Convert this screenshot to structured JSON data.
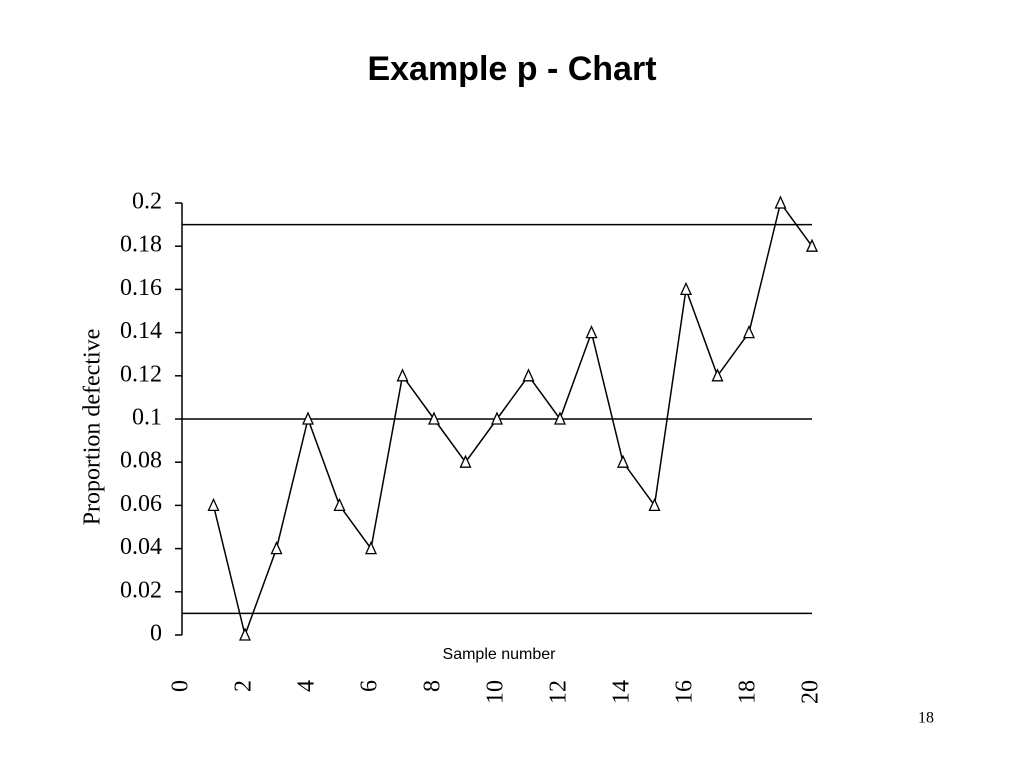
{
  "chart_data": {
    "type": "line",
    "title": "Example p - Chart",
    "x_label": "Sample number",
    "y_label": "Proportion defective",
    "x": [
      1,
      2,
      3,
      4,
      5,
      6,
      7,
      8,
      9,
      10,
      11,
      12,
      13,
      14,
      15,
      16,
      17,
      18,
      19,
      20
    ],
    "series": [
      {
        "color": "#000000",
        "marker": "triangle",
        "values": [
          0.06,
          0,
          0.04,
          0.1,
          0.06,
          0.04,
          0.12,
          0.1,
          0.08,
          0.1,
          0.12,
          0.1,
          0.14,
          0.08,
          0.06,
          0.16,
          0.12,
          0.14,
          0.2,
          0.18
        ]
      }
    ],
    "control_lines": [
      0.19,
      0.1,
      0.01
    ],
    "xlim": [
      0,
      20
    ],
    "xticks": [
      0,
      2,
      4,
      6,
      8,
      10,
      12,
      14,
      16,
      18,
      20
    ],
    "ylim": [
      0,
      0.2
    ],
    "yticks": [
      0,
      0.02,
      0.04,
      0.06,
      0.08,
      0.1,
      0.12,
      0.14,
      0.16,
      0.18,
      0.2
    ],
    "grid": false
  },
  "page_number": "18"
}
